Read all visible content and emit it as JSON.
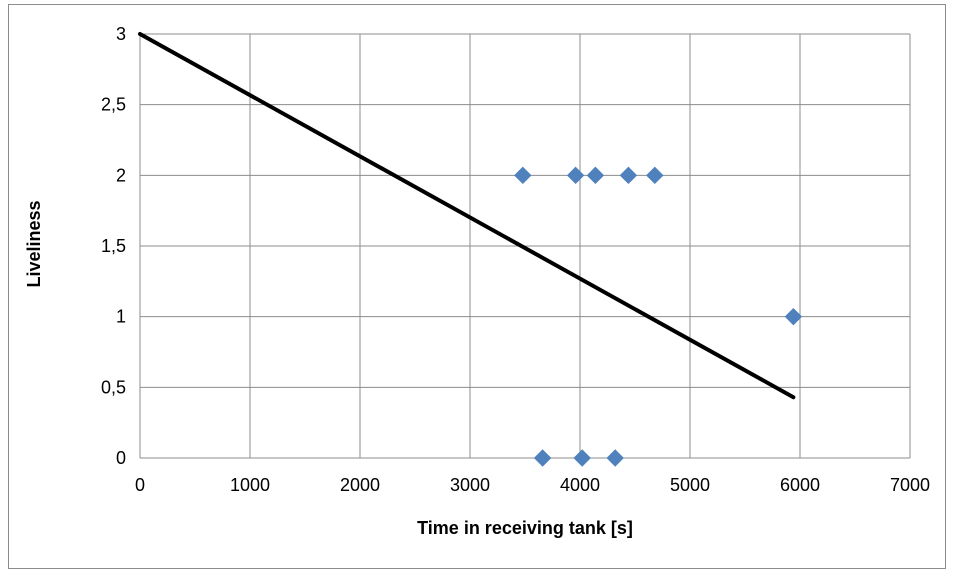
{
  "chart_data": {
    "type": "scatter",
    "title": "",
    "xlabel": "Time in receiving tank [s]",
    "ylabel": "Liveliness",
    "xlim": [
      0,
      7000
    ],
    "ylim": [
      0,
      3
    ],
    "x_ticks": [
      0,
      1000,
      2000,
      3000,
      4000,
      5000,
      6000,
      7000
    ],
    "x_tick_labels": [
      "0",
      "1000",
      "2000",
      "3000",
      "4000",
      "5000",
      "6000",
      "7000"
    ],
    "y_ticks": [
      0,
      0.5,
      1,
      1.5,
      2,
      2.5,
      3
    ],
    "y_tick_labels": [
      "0",
      "0,5",
      "1",
      "1,5",
      "2",
      "2,5",
      "3"
    ],
    "grid": true,
    "legend": "none",
    "series": [
      {
        "type": "scatter",
        "marker": "diamond",
        "color": "#4f81bd",
        "points": [
          {
            "x": 3480,
            "y": 2
          },
          {
            "x": 3960,
            "y": 2
          },
          {
            "x": 4140,
            "y": 2
          },
          {
            "x": 4440,
            "y": 2
          },
          {
            "x": 4680,
            "y": 2
          },
          {
            "x": 5940,
            "y": 1
          },
          {
            "x": 3660,
            "y": 0
          },
          {
            "x": 4020,
            "y": 0
          },
          {
            "x": 4320,
            "y": 0
          }
        ]
      },
      {
        "type": "line",
        "color": "#000000",
        "points": [
          {
            "x": 0,
            "y": 3
          },
          {
            "x": 5940,
            "y": 0.43
          }
        ]
      }
    ]
  }
}
